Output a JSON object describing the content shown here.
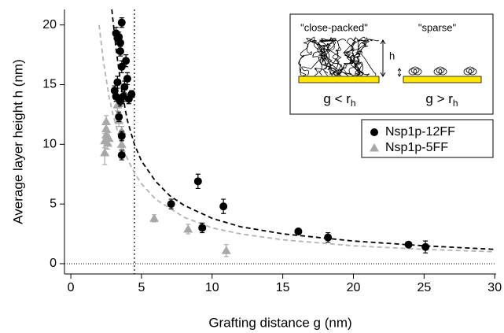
{
  "chart_data": {
    "type": "scatter",
    "x_label": "Grafting distance g (nm)",
    "y_label": "Average layer height h (nm)",
    "xlim": [
      -0.45,
      30.1
    ],
    "ylim": [
      -0.86,
      21.3
    ],
    "xticks": [
      0,
      5,
      10,
      15,
      20,
      25,
      30
    ],
    "yticks": [
      0,
      5,
      10,
      15,
      20
    ],
    "vline": 4.5,
    "hline": 0,
    "legend": "upper right",
    "series": [
      {
        "name": "Nsp1p-12FF",
        "color": "#000000",
        "marker": "circle",
        "x": [
          3.1,
          3.2,
          3.3,
          3.3,
          3.4,
          3.5,
          3.5,
          3.6,
          3.6,
          3.7,
          3.8,
          3.5,
          3.6,
          3.6,
          3.9,
          4.0,
          4.1,
          4.3,
          3.2,
          3.4,
          7.1,
          9.3,
          9.0,
          10.8,
          16.1,
          18.2,
          23.9,
          25.1
        ],
        "values": [
          14.5,
          19.3,
          18.9,
          15.2,
          19.0,
          18.5,
          17.8,
          20.2,
          16.5,
          14.0,
          14.8,
          13.6,
          10.7,
          9.1,
          17.0,
          15.5,
          13.8,
          14.2,
          14.0,
          12.3,
          5.0,
          3.0,
          6.9,
          4.8,
          2.7,
          2.2,
          1.6,
          1.4
        ],
        "errors": [
          0.4,
          0.5,
          0.5,
          0.5,
          0.4,
          0.5,
          0.4,
          0.4,
          0.5,
          0.4,
          0.5,
          0.4,
          0.4,
          0.4,
          0.5,
          0.5,
          0.4,
          0.3,
          0.4,
          0.4,
          0.4,
          0.4,
          0.6,
          0.6,
          0.2,
          0.4,
          0.2,
          0.5
        ]
      },
      {
        "name": "Nsp1p-5FF",
        "color": "#a8a8a8",
        "marker": "triangle",
        "x": [
          2.4,
          2.4,
          2.5,
          2.5,
          2.5,
          2.6,
          2.7,
          3.3,
          3.4,
          3.6,
          3.6,
          5.9,
          8.3,
          11.0
        ],
        "values": [
          9.3,
          10.3,
          11.3,
          11.9,
          10.8,
          10.1,
          10.5,
          13.3,
          12.0,
          11.1,
          10.0,
          3.8,
          2.9,
          1.1
        ],
        "errors": [
          1.0,
          0.6,
          0.6,
          0.5,
          0.6,
          0.5,
          0.5,
          0.5,
          0.5,
          0.4,
          0.4,
          0.3,
          0.4,
          0.5
        ]
      }
    ],
    "fits": [
      {
        "color": "#000000",
        "x": [
          2.9,
          3.2,
          3.6,
          4,
          4.5,
          5,
          6,
          7,
          8,
          10,
          12,
          15,
          20,
          25,
          30
        ],
        "values": [
          21.3,
          18,
          14.5,
          12,
          10,
          8.6,
          6.9,
          5.7,
          4.9,
          3.8,
          3.1,
          2.5,
          1.9,
          1.5,
          1.2
        ]
      },
      {
        "color": "#b4b4b4",
        "x": [
          2.0,
          2.3,
          2.7,
          3,
          3.5,
          4,
          4.5,
          5,
          6,
          8,
          10,
          12,
          15,
          20,
          25,
          30
        ],
        "values": [
          20,
          17,
          14,
          12.4,
          10.3,
          8.8,
          7.6,
          6.7,
          5.4,
          3.9,
          3.0,
          2.5,
          2.0,
          1.5,
          1.2,
          1.0
        ]
      }
    ],
    "inset": {
      "left_title": "\"close-packed\"",
      "right_title": "\"sparse\"",
      "height_label": "h",
      "left_condition": "g < r",
      "right_condition": "g > r",
      "subscript": "h"
    }
  }
}
